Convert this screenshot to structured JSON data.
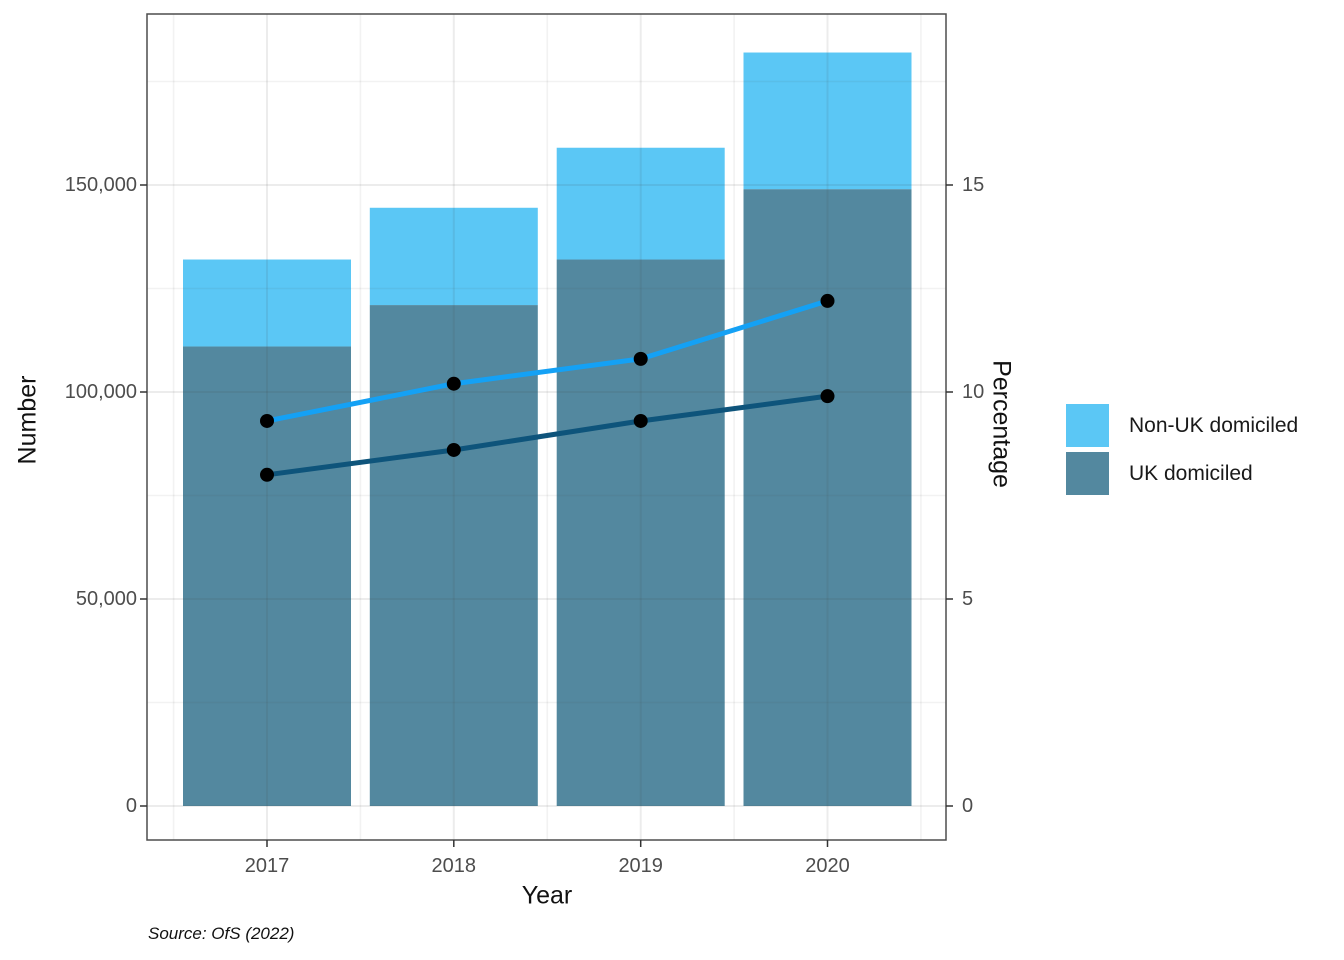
{
  "chart_data": {
    "type": "bar",
    "subtype": "stacked-bars-with-dual-axis-lines",
    "categories": [
      "2017",
      "2018",
      "2019",
      "2020"
    ],
    "bar_series": [
      {
        "name": "UK domiciled",
        "axis": "left",
        "color": "#53889f",
        "values": [
          111000,
          121000,
          132000,
          149000
        ]
      },
      {
        "name": "Non-UK domiciled",
        "axis": "left",
        "color": "#5bc7f5",
        "values": [
          21000,
          23500,
          27000,
          33000
        ]
      }
    ],
    "bar_totals": [
      132000,
      144500,
      159000,
      182000
    ],
    "line_series": [
      {
        "name": "Non-UK domiciled (percentage)",
        "axis": "right",
        "color": "#14a1f5",
        "values": [
          9.3,
          10.2,
          10.8,
          12.2
        ]
      },
      {
        "name": "UK domiciled (percentage)",
        "axis": "right",
        "color": "#0e547b",
        "values": [
          8.0,
          8.6,
          9.3,
          9.9
        ]
      }
    ],
    "point_color": "#000000",
    "xlabel": "Year",
    "ylabel_left": "Number",
    "ylabel_right": "Percentage",
    "yticks_left": [
      "0",
      "50,000",
      "100,000",
      "150,000"
    ],
    "yticks_left_values": [
      0,
      50000,
      100000,
      150000
    ],
    "yticks_right": [
      "0",
      "5",
      "10",
      "15"
    ],
    "yticks_right_values": [
      0,
      5,
      10,
      15
    ],
    "ylim_left": [
      0,
      191000
    ],
    "ylim_right": [
      0,
      19.1
    ],
    "grid": true,
    "legend_position": "right",
    "legend": [
      {
        "label": "Non-UK domiciled",
        "color": "#5bc7f5"
      },
      {
        "label": "UK domiciled",
        "color": "#53889f"
      }
    ],
    "caption": "Source: OfS (2022)"
  }
}
